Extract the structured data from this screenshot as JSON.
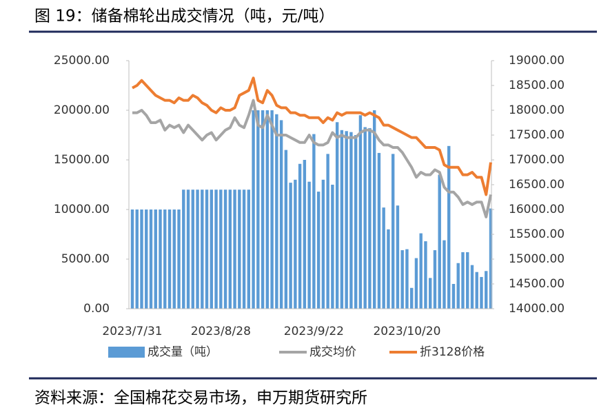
{
  "chart_data": {
    "type": "bar_line",
    "title": "图 19：储备棉轮出成交情况（吨，元/吨）",
    "source": "资料来源：全国棉花交易市场，申万期货研究所",
    "categories": [
      "2023/7/31",
      null,
      null,
      null,
      null,
      null,
      null,
      null,
      null,
      null,
      null,
      null,
      null,
      null,
      null,
      null,
      null,
      null,
      null,
      "2023/8/28",
      null,
      null,
      null,
      null,
      null,
      null,
      null,
      null,
      null,
      null,
      null,
      null,
      null,
      null,
      null,
      null,
      null,
      null,
      null,
      "2023/9/22",
      null,
      null,
      null,
      null,
      null,
      null,
      null,
      null,
      null,
      null,
      null,
      null,
      null,
      null,
      null,
      null,
      null,
      null,
      null,
      "2023/10/20",
      null,
      null,
      null,
      null,
      null,
      null,
      null,
      null,
      null,
      null,
      null,
      null,
      null,
      null,
      null,
      null,
      null,
      null
    ],
    "series": [
      {
        "name": "成交量（吨）",
        "type": "bar",
        "axis": "y",
        "color": "#5b9bd5",
        "values": [
          10000,
          10000,
          10000,
          10000,
          10000,
          10000,
          10000,
          10000,
          10000,
          10000,
          10000,
          12000,
          12000,
          12000,
          12000,
          12000,
          12000,
          12000,
          12000,
          12000,
          12000,
          12000,
          12000,
          12000,
          12000,
          12000,
          20000,
          20000,
          20000,
          20000,
          20000,
          19600,
          19000,
          16000,
          12700,
          13000,
          14600,
          15000,
          12800,
          17600,
          11800,
          13000,
          15600,
          12500,
          18800,
          18000,
          17900,
          17800,
          17500,
          19500,
          18300,
          18200,
          20000,
          15700,
          10200,
          8000,
          15600,
          10400,
          5900,
          6000,
          2100,
          5100,
          7600,
          6800,
          3100,
          5900,
          13500,
          6900,
          16400,
          2500,
          4600,
          5700,
          5700,
          4400,
          3700,
          3200,
          3800,
          10100
        ]
      },
      {
        "name": "成交均价",
        "type": "line",
        "axis": "y2",
        "color": "#a5a5a5",
        "values": [
          17950,
          17950,
          18000,
          17900,
          17750,
          17750,
          17800,
          17600,
          17700,
          17650,
          17700,
          17550,
          17700,
          17600,
          17500,
          17400,
          17500,
          17550,
          17400,
          17500,
          17600,
          17650,
          17850,
          17700,
          17650,
          17900,
          18200,
          17700,
          17650,
          17900,
          17700,
          17500,
          17500,
          17500,
          17450,
          17400,
          17350,
          17350,
          17500,
          17350,
          17300,
          17300,
          17350,
          17550,
          17450,
          17500,
          17450,
          17450,
          17450,
          17550,
          17600,
          17600,
          17550,
          17400,
          17300,
          17300,
          17250,
          17250,
          17150,
          17000,
          16850,
          16650,
          16750,
          16700,
          16700,
          16800,
          16750,
          16450,
          16350,
          16350,
          16250,
          16100,
          16150,
          16100,
          16150,
          16150,
          15850,
          16300
        ]
      },
      {
        "name": "折3128价格",
        "type": "line",
        "axis": "y2",
        "color": "#ed7d31",
        "values": [
          18450,
          18500,
          18600,
          18500,
          18400,
          18300,
          18250,
          18200,
          18200,
          18150,
          18250,
          18200,
          18200,
          18300,
          18250,
          18150,
          18100,
          18000,
          17950,
          18050,
          18000,
          18000,
          18050,
          18300,
          18350,
          18400,
          18650,
          18200,
          18150,
          18400,
          18300,
          18100,
          18050,
          18050,
          17950,
          17950,
          17900,
          17900,
          17850,
          17850,
          17850,
          17750,
          17850,
          17800,
          17950,
          17900,
          17950,
          17950,
          17950,
          17950,
          17900,
          17950,
          17900,
          17850,
          17700,
          17700,
          17650,
          17600,
          17550,
          17500,
          17450,
          17450,
          17350,
          17250,
          17250,
          17250,
          17200,
          16900,
          16850,
          16850,
          16850,
          16700,
          16700,
          16750,
          16650,
          16650,
          16300,
          16950
        ]
      }
    ],
    "ylim": [
      0,
      25000
    ],
    "yticks": [
      {
        "value": 0,
        "label": "0.00"
      },
      {
        "value": 5000,
        "label": "5000.00"
      },
      {
        "value": 10000,
        "label": "10000.00"
      },
      {
        "value": 15000,
        "label": "15000.00"
      },
      {
        "value": 20000,
        "label": "20000.00"
      },
      {
        "value": 25000,
        "label": "25000.00"
      }
    ],
    "y2lim": [
      14000,
      19000
    ],
    "y2ticks": [
      {
        "value": 14000,
        "label": "14000.00"
      },
      {
        "value": 14500,
        "label": "14500.00"
      },
      {
        "value": 15000,
        "label": "15000.00"
      },
      {
        "value": 15500,
        "label": "15500.00"
      },
      {
        "value": 16000,
        "label": "16000.00"
      },
      {
        "value": 16500,
        "label": "16500.00"
      },
      {
        "value": 17000,
        "label": "17000.00"
      },
      {
        "value": 17500,
        "label": "17500.00"
      },
      {
        "value": 18000,
        "label": "18000.00"
      },
      {
        "value": 18500,
        "label": "18500.00"
      },
      {
        "value": 19000,
        "label": "19000.00"
      }
    ],
    "legend": "bottom"
  }
}
